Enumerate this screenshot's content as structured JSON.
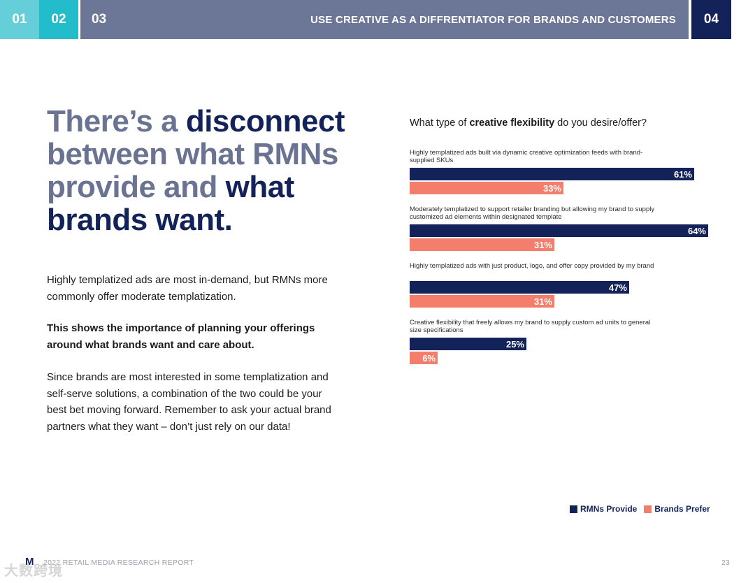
{
  "nav": {
    "tab1": "01",
    "tab2": "02",
    "tab3": "03",
    "section_title": "USE CREATIVE AS A DIFFRENTIATOR FOR BRANDS AND CUSTOMERS",
    "tab4": "04",
    "colors": {
      "tab1": "#64cfd8",
      "tab2": "#22bccb",
      "tab3": "#6c7797",
      "tab4": "#13235a"
    }
  },
  "headline": {
    "part1": "There’s a ",
    "part2": "disconnect",
    "part3": " between what RMNs provide and ",
    "part4": "what brands want."
  },
  "body": {
    "para1": "Highly templatized ads are most in-demand, but RMNs more commonly offer moderate templatization.",
    "para2": "This shows the importance of planning your offerings around what brands want and care about.",
    "para3": "Since brands are most interested in some templatization and self-serve solutions, a combination of the two could be your best bet moving forward. Remember to ask your actual brand partners what they want – don’t just rely on our data!"
  },
  "chart_data": {
    "type": "bar",
    "orientation": "horizontal",
    "title_pre": "What type of ",
    "title_bold": "creative flexibility",
    "title_post": " do you desire/offer?",
    "categories": [
      "Highly templatized ads built via dynamic creative optimization feeds with brand-supplied SKUs",
      "Moderately templatized to support retailer branding but allowing my brand to supply customized ad elements within designated template",
      "Highly templatized ads with just product, logo, and offer copy provided by my brand",
      "Creative flexibility that freely allows my brand to supply custom ad units to general size specifications"
    ],
    "series": [
      {
        "name": "RMNs Provide",
        "color": "#13235a",
        "values": [
          61,
          64,
          47,
          25
        ],
        "labels": [
          "61%",
          "64%",
          "47%",
          "25%"
        ]
      },
      {
        "name": "Brands Prefer",
        "color": "#f47e6c",
        "values": [
          33,
          31,
          31,
          6
        ],
        "labels": [
          "33%",
          "31%",
          "31%",
          "6%"
        ]
      }
    ],
    "unit": "%",
    "xlim": [
      0,
      64
    ],
    "legend": "bottom-right"
  },
  "legend": {
    "rmn": "RMNs Provide",
    "brand": "Brands Prefer"
  },
  "footer": {
    "logo": "M",
    "report": "2022 RETAIL MEDIA RESEARCH REPORT",
    "page": "23",
    "watermark": "大数跨境"
  }
}
